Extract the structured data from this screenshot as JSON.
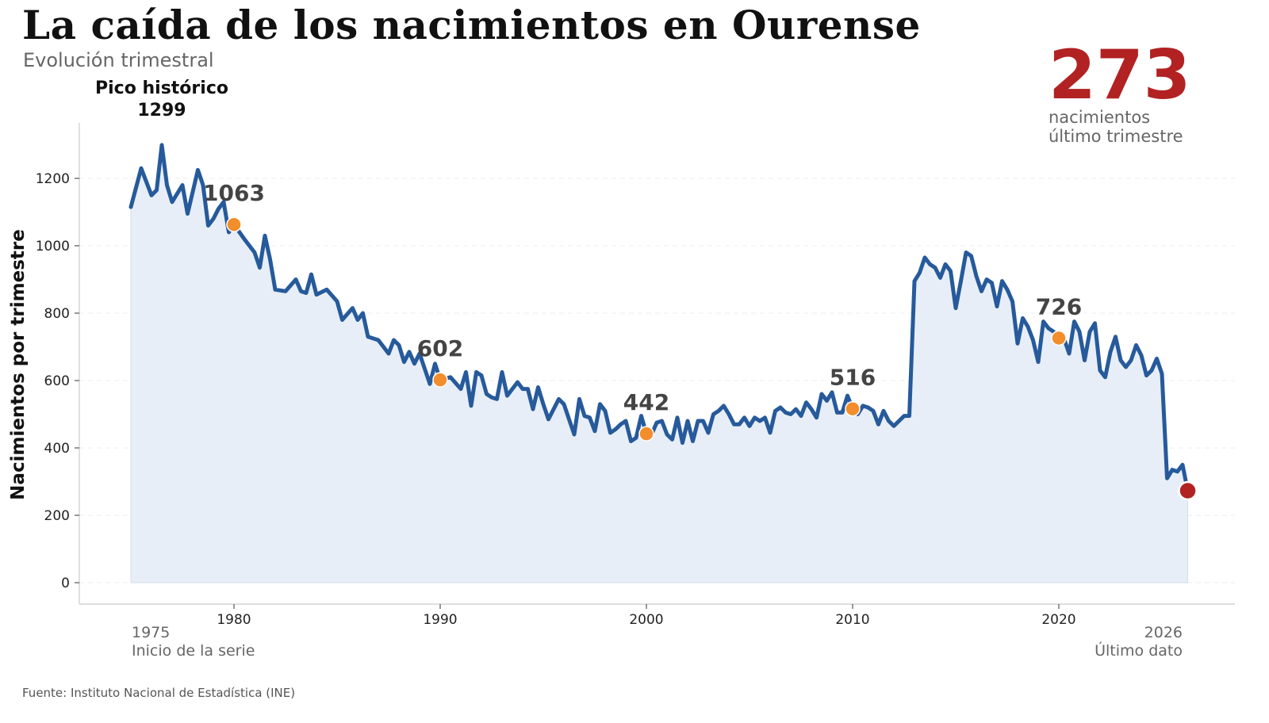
{
  "header": {
    "title": "La caída de los nacimientos en Ourense",
    "subtitle": "Evolución trimestral"
  },
  "kpi": {
    "value": "273",
    "caption_line1": "nacimientos",
    "caption_line2": "último trimestre",
    "color": "#b22222"
  },
  "peak": {
    "label": "Pico histórico",
    "value": "1299"
  },
  "footer": {
    "source": "Fuente: Instituto Nacional de Estadística (INE)"
  },
  "colors": {
    "line": "#265a9b",
    "area": "#e8eef7",
    "marker": "#f28e2b",
    "last_marker": "#b22222"
  },
  "chart_data": {
    "type": "area",
    "ylabel": "Nacimientos por trimestre",
    "xlim": [
      1975,
      2026.5
    ],
    "ylim": [
      0,
      1370
    ],
    "grid": true,
    "x_ticks": [
      "1980",
      "1990",
      "2000",
      "2010",
      "2020"
    ],
    "y_ticks": [
      "0",
      "200",
      "400",
      "600",
      "800",
      "1000",
      "1200"
    ],
    "start_label": {
      "year": "1975",
      "text": "Inicio de la serie"
    },
    "end_label": {
      "year": "2026",
      "text": "Último dato"
    },
    "highlight_points": [
      {
        "x": 1980,
        "y": 1063,
        "label": "1063"
      },
      {
        "x": 1990,
        "y": 602,
        "label": "602"
      },
      {
        "x": 2000,
        "y": 442,
        "label": "442"
      },
      {
        "x": 2010,
        "y": 516,
        "label": "516"
      },
      {
        "x": 2020,
        "y": 726,
        "label": "726"
      }
    ],
    "last_point": {
      "x": 2026,
      "y": 273
    },
    "series": [
      {
        "points": [
          [
            1975.0,
            1115
          ],
          [
            1975.5,
            1230
          ],
          [
            1976.0,
            1150
          ],
          [
            1976.25,
            1165
          ],
          [
            1976.5,
            1299
          ],
          [
            1976.75,
            1180
          ],
          [
            1977.0,
            1130
          ],
          [
            1977.5,
            1180
          ],
          [
            1977.75,
            1095
          ],
          [
            1978.25,
            1225
          ],
          [
            1978.5,
            1180
          ],
          [
            1978.75,
            1060
          ],
          [
            1979.0,
            1080
          ],
          [
            1979.25,
            1110
          ],
          [
            1979.5,
            1130
          ],
          [
            1979.75,
            1040
          ],
          [
            1980.0,
            1063
          ],
          [
            1980.5,
            1020
          ],
          [
            1981.0,
            980
          ],
          [
            1981.25,
            935
          ],
          [
            1981.5,
            1030
          ],
          [
            1981.75,
            960
          ],
          [
            1982.0,
            870
          ],
          [
            1982.5,
            865
          ],
          [
            1983.0,
            900
          ],
          [
            1983.25,
            865
          ],
          [
            1983.5,
            860
          ],
          [
            1983.75,
            915
          ],
          [
            1984.0,
            855
          ],
          [
            1984.5,
            870
          ],
          [
            1985.0,
            835
          ],
          [
            1985.25,
            780
          ],
          [
            1985.75,
            815
          ],
          [
            1986.0,
            780
          ],
          [
            1986.25,
            800
          ],
          [
            1986.5,
            730
          ],
          [
            1987.0,
            720
          ],
          [
            1987.25,
            700
          ],
          [
            1987.5,
            680
          ],
          [
            1987.75,
            720
          ],
          [
            1988.0,
            705
          ],
          [
            1988.25,
            655
          ],
          [
            1988.5,
            685
          ],
          [
            1988.75,
            650
          ],
          [
            1989.0,
            680
          ],
          [
            1989.5,
            590
          ],
          [
            1989.75,
            650
          ],
          [
            1990.0,
            602
          ],
          [
            1990.5,
            610
          ],
          [
            1991.0,
            575
          ],
          [
            1991.25,
            625
          ],
          [
            1991.5,
            525
          ],
          [
            1991.75,
            625
          ],
          [
            1992.0,
            615
          ],
          [
            1992.25,
            560
          ],
          [
            1992.5,
            550
          ],
          [
            1992.75,
            545
          ],
          [
            1993.0,
            625
          ],
          [
            1993.25,
            555
          ],
          [
            1993.5,
            575
          ],
          [
            1993.75,
            595
          ],
          [
            1994.0,
            575
          ],
          [
            1994.25,
            575
          ],
          [
            1994.5,
            515
          ],
          [
            1994.75,
            580
          ],
          [
            1995.0,
            530
          ],
          [
            1995.25,
            485
          ],
          [
            1995.75,
            545
          ],
          [
            1996.0,
            530
          ],
          [
            1996.5,
            440
          ],
          [
            1996.75,
            545
          ],
          [
            1997.0,
            495
          ],
          [
            1997.25,
            490
          ],
          [
            1997.5,
            450
          ],
          [
            1997.75,
            530
          ],
          [
            1998.0,
            510
          ],
          [
            1998.25,
            445
          ],
          [
            1998.5,
            455
          ],
          [
            1998.75,
            470
          ],
          [
            1999.0,
            480
          ],
          [
            1999.25,
            420
          ],
          [
            1999.5,
            430
          ],
          [
            1999.75,
            495
          ],
          [
            2000.0,
            442
          ],
          [
            2000.25,
            440
          ],
          [
            2000.5,
            475
          ],
          [
            2000.75,
            480
          ],
          [
            2001.0,
            440
          ],
          [
            2001.25,
            425
          ],
          [
            2001.5,
            490
          ],
          [
            2001.75,
            415
          ],
          [
            2002.0,
            480
          ],
          [
            2002.25,
            420
          ],
          [
            2002.5,
            480
          ],
          [
            2002.75,
            480
          ],
          [
            2003.0,
            445
          ],
          [
            2003.25,
            500
          ],
          [
            2003.5,
            510
          ],
          [
            2003.75,
            525
          ],
          [
            2004.0,
            500
          ],
          [
            2004.25,
            470
          ],
          [
            2004.5,
            470
          ],
          [
            2004.75,
            490
          ],
          [
            2005.0,
            465
          ],
          [
            2005.25,
            490
          ],
          [
            2005.5,
            480
          ],
          [
            2005.75,
            490
          ],
          [
            2006.0,
            445
          ],
          [
            2006.25,
            510
          ],
          [
            2006.5,
            520
          ],
          [
            2006.75,
            505
          ],
          [
            2007.0,
            500
          ],
          [
            2007.25,
            515
          ],
          [
            2007.5,
            495
          ],
          [
            2007.75,
            535
          ],
          [
            2008.0,
            515
          ],
          [
            2008.25,
            490
          ],
          [
            2008.5,
            560
          ],
          [
            2008.75,
            540
          ],
          [
            2009.0,
            565
          ],
          [
            2009.25,
            505
          ],
          [
            2009.5,
            505
          ],
          [
            2009.75,
            555
          ],
          [
            2010.0,
            516
          ],
          [
            2010.25,
            500
          ],
          [
            2010.5,
            525
          ],
          [
            2010.75,
            520
          ],
          [
            2011.0,
            510
          ],
          [
            2011.25,
            470
          ],
          [
            2011.5,
            510
          ],
          [
            2011.75,
            480
          ],
          [
            2012.0,
            465
          ],
          [
            2012.25,
            480
          ],
          [
            2012.5,
            495
          ],
          [
            2012.75,
            495
          ],
          [
            2013.0,
            895
          ],
          [
            2013.25,
            920
          ],
          [
            2013.5,
            965
          ],
          [
            2013.75,
            945
          ],
          [
            2014.0,
            935
          ],
          [
            2014.25,
            905
          ],
          [
            2014.5,
            945
          ],
          [
            2014.75,
            925
          ],
          [
            2015.0,
            815
          ],
          [
            2015.25,
            895
          ],
          [
            2015.5,
            980
          ],
          [
            2015.75,
            970
          ],
          [
            2016.0,
            910
          ],
          [
            2016.25,
            865
          ],
          [
            2016.5,
            900
          ],
          [
            2016.75,
            890
          ],
          [
            2017.0,
            820
          ],
          [
            2017.25,
            895
          ],
          [
            2017.5,
            870
          ],
          [
            2017.75,
            835
          ],
          [
            2018.0,
            710
          ],
          [
            2018.25,
            785
          ],
          [
            2018.5,
            760
          ],
          [
            2018.75,
            720
          ],
          [
            2019.0,
            655
          ],
          [
            2019.25,
            775
          ],
          [
            2019.5,
            755
          ],
          [
            2019.75,
            745
          ],
          [
            2020.0,
            726
          ],
          [
            2020.25,
            725
          ],
          [
            2020.5,
            680
          ],
          [
            2020.75,
            775
          ],
          [
            2021.0,
            745
          ],
          [
            2021.25,
            660
          ],
          [
            2021.5,
            745
          ],
          [
            2021.75,
            770
          ],
          [
            2022.0,
            630
          ],
          [
            2022.25,
            610
          ],
          [
            2022.5,
            685
          ],
          [
            2022.75,
            730
          ],
          [
            2023.0,
            660
          ],
          [
            2023.25,
            640
          ],
          [
            2023.5,
            660
          ],
          [
            2023.75,
            705
          ],
          [
            2024.0,
            675
          ],
          [
            2024.25,
            615
          ],
          [
            2024.5,
            630
          ],
          [
            2024.75,
            665
          ],
          [
            2025.0,
            620
          ],
          [
            2025.25,
            310
          ],
          [
            2025.5,
            335
          ],
          [
            2025.75,
            330
          ],
          [
            2026.0,
            350
          ],
          [
            2026.25,
            273
          ]
        ]
      }
    ]
  }
}
